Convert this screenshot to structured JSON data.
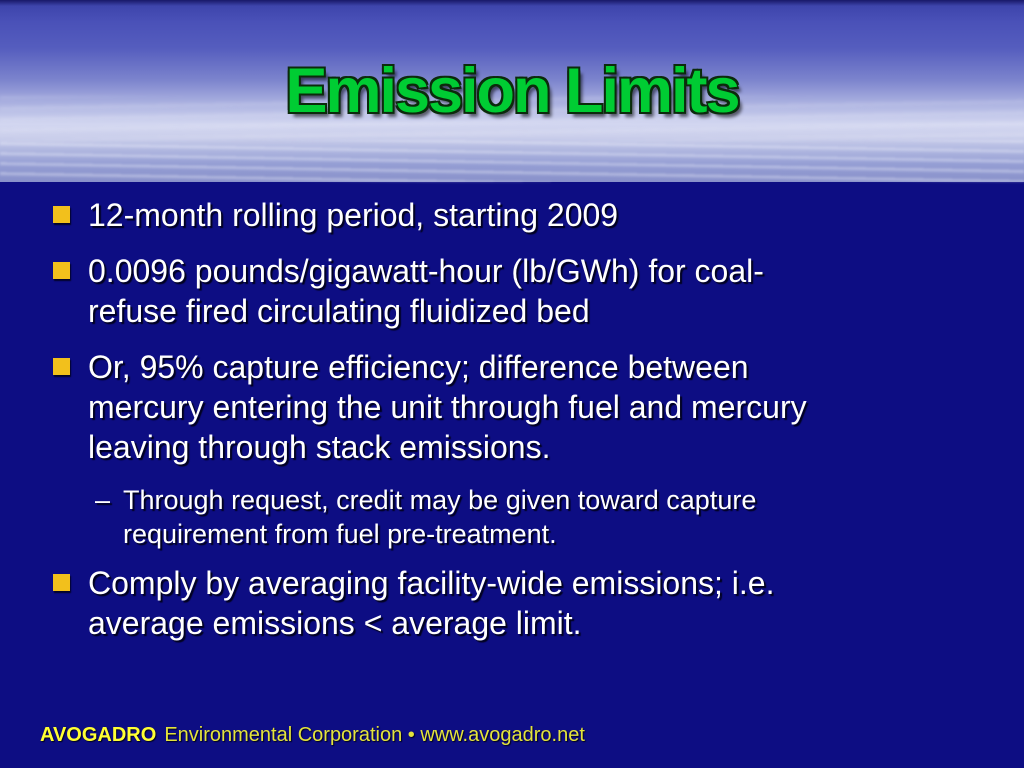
{
  "slide": {
    "title": "Emission Limits",
    "bullets": [
      {
        "level": 1,
        "lines": [
          "12-month rolling period, starting 2009"
        ]
      },
      {
        "level": 1,
        "lines": [
          "0.0096 pounds/gigawatt-hour (lb/GWh) for coal-",
          "refuse fired circulating fluidized bed"
        ]
      },
      {
        "level": 1,
        "lines": [
          "Or, 95% capture efficiency; difference between",
          "mercury entering the unit through fuel and mercury",
          "leaving through stack emissions."
        ]
      },
      {
        "level": 2,
        "lines": [
          "Through request, credit may be given toward capture",
          "requirement from fuel pre-treatment."
        ]
      },
      {
        "level": 1,
        "lines": [
          "Comply by averaging facility-wide emissions; i.e.",
          "average emissions < average limit."
        ]
      }
    ],
    "sub_bullet_marker": "–",
    "footer": {
      "brand": "AVOGADRO",
      "rest": "Environmental Corporation • www.avogadro.net"
    },
    "colors": {
      "body_background": "#0d0d83",
      "banner_top_blue": "#4a51b8",
      "banner_light_band": "#d2d6f0",
      "banner_bottom": "#8991ca",
      "title_green": "#00cc33",
      "bullet_gold": "#f2c01c",
      "text_white": "#ffffff",
      "footer_yellow_bold": "#ffff33",
      "footer_yellow": "#e3e33c"
    }
  }
}
